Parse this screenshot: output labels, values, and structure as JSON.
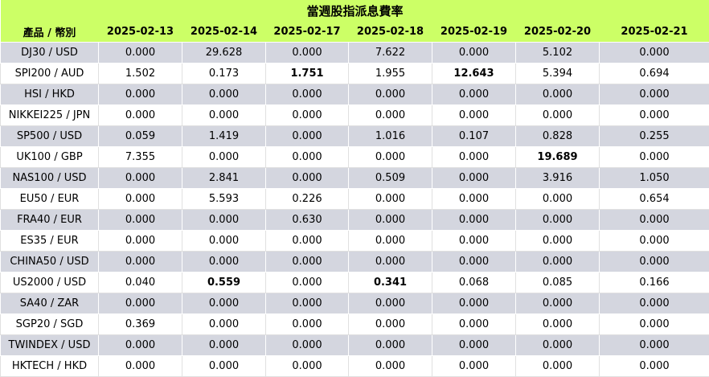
{
  "title": "當週股指派息費率",
  "columns": [
    "產品 / 幣別",
    "2025-02-13",
    "2025-02-14",
    "2025-02-17",
    "2025-02-18",
    "2025-02-19",
    "2025-02-20",
    "2025-02-21"
  ],
  "rows": [
    {
      "product": "DJ30 / USD",
      "values": [
        "0.000",
        "29.628",
        "0.000",
        "7.622",
        "0.000",
        "5.102",
        "0.000"
      ],
      "bold": []
    },
    {
      "product": "SPI200 / AUD",
      "values": [
        "1.502",
        "0.173",
        "1.751",
        "1.955",
        "12.643",
        "5.394",
        "0.694"
      ],
      "bold": [
        2,
        4
      ]
    },
    {
      "product": "HSI / HKD",
      "values": [
        "0.000",
        "0.000",
        "0.000",
        "0.000",
        "0.000",
        "0.000",
        "0.000"
      ],
      "bold": []
    },
    {
      "product": "NIKKEI225 / JPN",
      "values": [
        "0.000",
        "0.000",
        "0.000",
        "0.000",
        "0.000",
        "0.000",
        "0.000"
      ],
      "bold": []
    },
    {
      "product": "SP500 / USD",
      "values": [
        "0.059",
        "1.419",
        "0.000",
        "1.016",
        "0.107",
        "0.828",
        "0.255"
      ],
      "bold": []
    },
    {
      "product": "UK100 / GBP",
      "values": [
        "7.355",
        "0.000",
        "0.000",
        "0.000",
        "0.000",
        "19.689",
        "0.000"
      ],
      "bold": [
        5
      ]
    },
    {
      "product": "NAS100 / USD",
      "values": [
        "0.000",
        "2.841",
        "0.000",
        "0.509",
        "0.000",
        "3.916",
        "1.050"
      ],
      "bold": []
    },
    {
      "product": "EU50 / EUR",
      "values": [
        "0.000",
        "5.593",
        "0.226",
        "0.000",
        "0.000",
        "0.000",
        "0.654"
      ],
      "bold": []
    },
    {
      "product": "FRA40 / EUR",
      "values": [
        "0.000",
        "0.000",
        "0.630",
        "0.000",
        "0.000",
        "0.000",
        "0.000"
      ],
      "bold": []
    },
    {
      "product": "ES35 / EUR",
      "values": [
        "0.000",
        "0.000",
        "0.000",
        "0.000",
        "0.000",
        "0.000",
        "0.000"
      ],
      "bold": []
    },
    {
      "product": "CHINA50 / USD",
      "values": [
        "0.000",
        "0.000",
        "0.000",
        "0.000",
        "0.000",
        "0.000",
        "0.000"
      ],
      "bold": []
    },
    {
      "product": "US2000 / USD",
      "values": [
        "0.040",
        "0.559",
        "0.000",
        "0.341",
        "0.068",
        "0.085",
        "0.166"
      ],
      "bold": [
        1,
        3
      ]
    },
    {
      "product": "SA40 / ZAR",
      "values": [
        "0.000",
        "0.000",
        "0.000",
        "0.000",
        "0.000",
        "0.000",
        "0.000"
      ],
      "bold": []
    },
    {
      "product": "SGP20 / SGD",
      "values": [
        "0.369",
        "0.000",
        "0.000",
        "0.000",
        "0.000",
        "0.000",
        "0.000"
      ],
      "bold": []
    },
    {
      "product": "TWINDEX / USD",
      "values": [
        "0.000",
        "0.000",
        "0.000",
        "0.000",
        "0.000",
        "0.000",
        "0.000"
      ],
      "bold": []
    },
    {
      "product": "HKTECH / HKD",
      "values": [
        "0.000",
        "0.000",
        "0.000",
        "0.000",
        "0.000",
        "0.000",
        "0.000"
      ],
      "bold": []
    }
  ],
  "colors": {
    "header_bg": "#ccff66",
    "row_alt_bg": "#d4d6df",
    "row_bg": "#ffffff"
  }
}
